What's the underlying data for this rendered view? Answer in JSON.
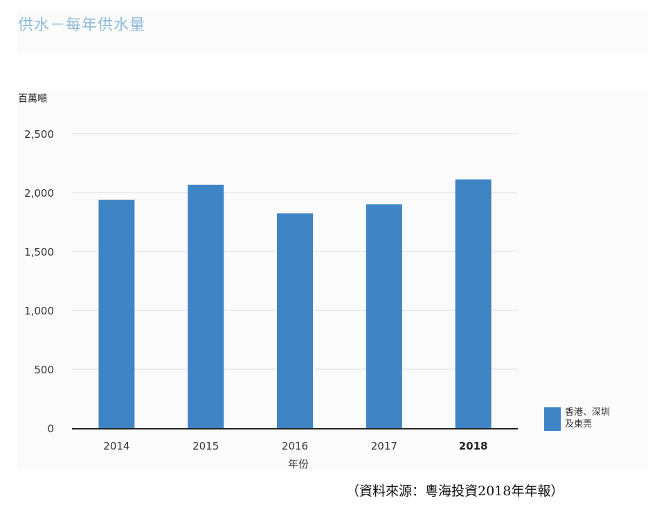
{
  "page": {
    "title": "供水－每年供水量",
    "source_note": "（資料來源：粵海投資2018年年報）"
  },
  "chart_data": {
    "type": "bar",
    "title": "",
    "ylabel": "百萬噸",
    "xlabel": "年份",
    "categories": [
      "2014",
      "2015",
      "2016",
      "2017",
      "2018"
    ],
    "highlight_category": "2018",
    "series": [
      {
        "name": "香港、深圳及東莞",
        "values": [
          1938,
          2066,
          1823,
          1900,
          2111
        ]
      }
    ],
    "yticks": [
      "0",
      "500",
      "1,000",
      "1,500",
      "2,000",
      "2,500"
    ],
    "ylim": [
      0,
      2500
    ],
    "grid": true,
    "legend_position": "bottom-right",
    "colors": {
      "bar": "#3f84c5",
      "grid": "#dcdcdc",
      "axis": "#222222"
    }
  },
  "legend": {
    "line1": "香港、深圳",
    "line2": "及東莞"
  }
}
